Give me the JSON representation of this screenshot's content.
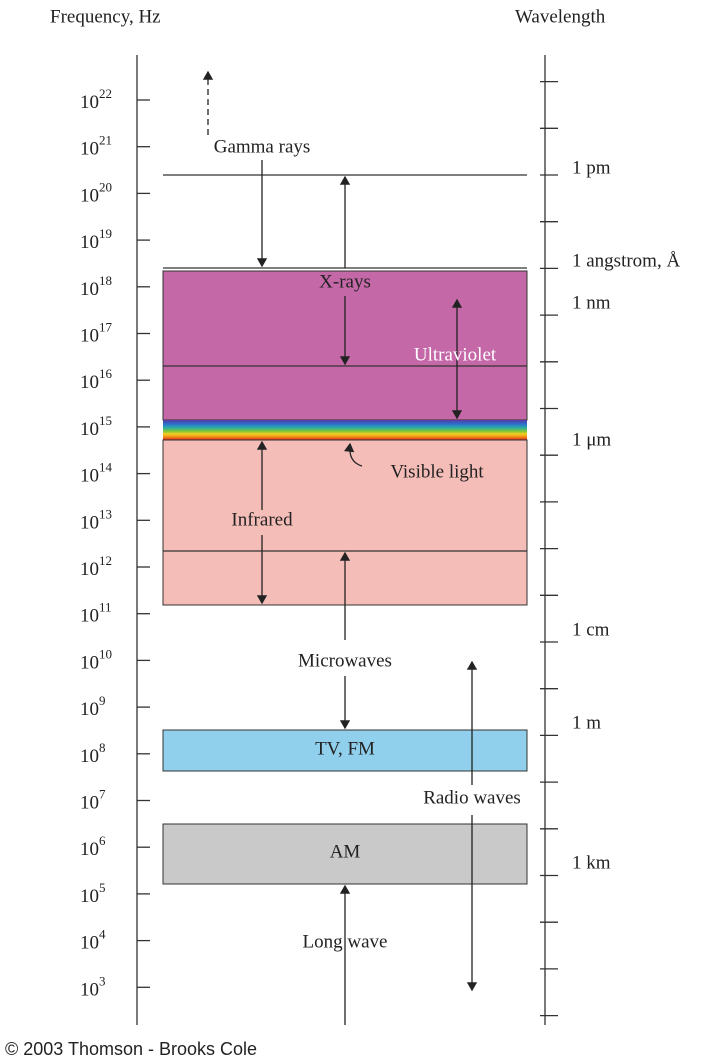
{
  "header": {
    "left_title": "Frequency, Hz",
    "right_title": "Wavelength"
  },
  "frequency_ticks": [
    {
      "base": "10",
      "exponent": "22"
    },
    {
      "base": "10",
      "exponent": "21"
    },
    {
      "base": "10",
      "exponent": "20"
    },
    {
      "base": "10",
      "exponent": "19"
    },
    {
      "base": "10",
      "exponent": "18"
    },
    {
      "base": "10",
      "exponent": "17"
    },
    {
      "base": "10",
      "exponent": "16"
    },
    {
      "base": "10",
      "exponent": "15"
    },
    {
      "base": "10",
      "exponent": "14"
    },
    {
      "base": "10",
      "exponent": "13"
    },
    {
      "base": "10",
      "exponent": "12"
    },
    {
      "base": "10",
      "exponent": "11"
    },
    {
      "base": "10",
      "exponent": "10"
    },
    {
      "base": "10",
      "exponent": "9"
    },
    {
      "base": "10",
      "exponent": "8"
    },
    {
      "base": "10",
      "exponent": "7"
    },
    {
      "base": "10",
      "exponent": "6"
    },
    {
      "base": "10",
      "exponent": "5"
    },
    {
      "base": "10",
      "exponent": "4"
    },
    {
      "base": "10",
      "exponent": "3"
    }
  ],
  "wavelength_labels": [
    "1 pm",
    "1 angstrom, Å",
    "1 nm",
    "1 μm",
    "1 cm",
    "1 m",
    "1 km"
  ],
  "regions": {
    "gamma": "Gamma rays",
    "xray": "X-rays",
    "uv": "Ultraviolet",
    "visible": "Visible light",
    "infrared": "Infrared",
    "microwave": "Microwaves",
    "tvfm": "TV, FM",
    "radio": "Radio waves",
    "am": "AM",
    "longwave": "Long wave"
  },
  "footer": "© 2003 Thomson - Brooks Cole"
}
